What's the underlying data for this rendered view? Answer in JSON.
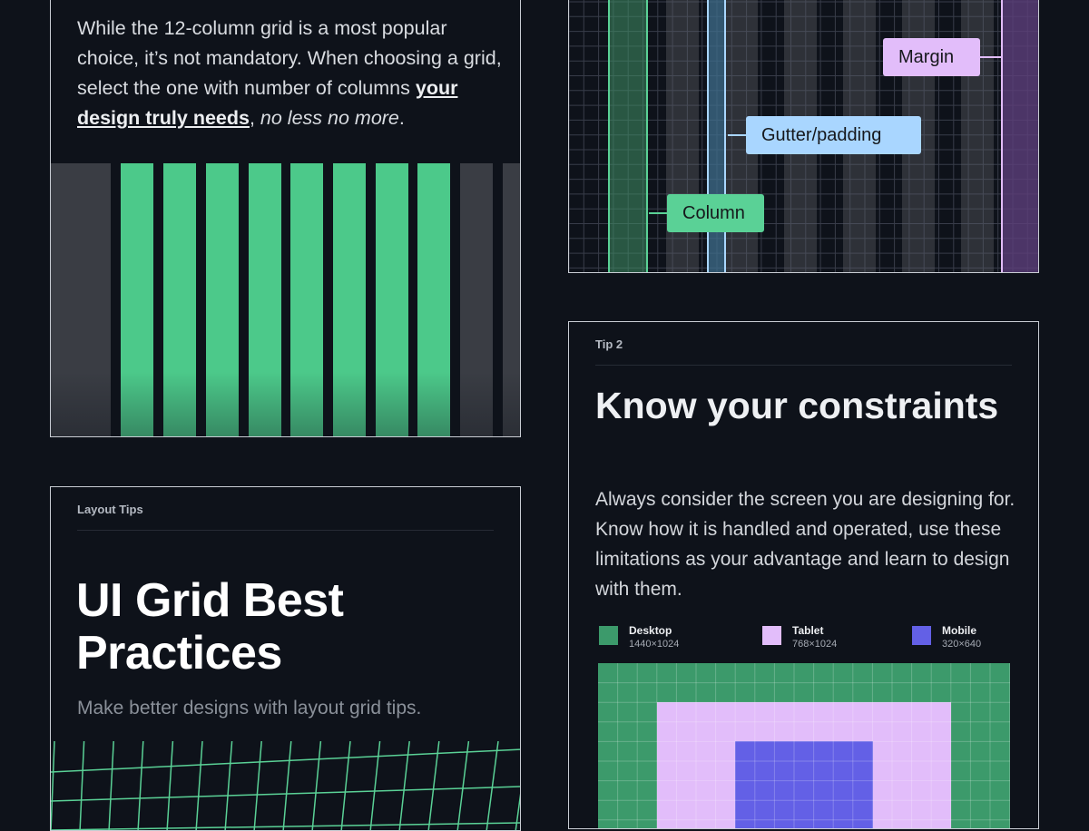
{
  "colors": {
    "background": "#0e121a",
    "column_green": "#4cc98a",
    "column_gray": "#3a3d44",
    "gutter_blue": "#a9d6ff",
    "margin_purple": "#e2bdfa",
    "desktop": "#3c9a6b",
    "tablet": "#e2bdfa",
    "mobile": "#6360e6"
  },
  "columns_card": {
    "text_part1": "While the 12-column grid is a most popular choice, it’s not mandatory. When choosing a grid, select the one with number of columns ",
    "text_strong": "your design truly needs",
    "text_comma": ", ",
    "text_em": "no less no more",
    "text_end": "."
  },
  "anatomy_card": {
    "callouts": {
      "margin": "Margin",
      "gutter": "Gutter/padding",
      "column": "Column"
    }
  },
  "title_card": {
    "eyebrow": "Layout Tips",
    "headline": "UI Grid Best Practices",
    "subline": "Make better designs with layout grid tips."
  },
  "constraints_card": {
    "eyebrow": "Tip 2",
    "headline": "Know your constraints",
    "body": "Always consider the screen you are designing for. Know how it is handled and operated, use these limitations as your advantage and learn to design with them.",
    "legend": [
      {
        "name": "Desktop",
        "size": "1440×1024",
        "icon": "desktop-swatch"
      },
      {
        "name": "Tablet",
        "size": "768×1024",
        "icon": "tablet-swatch"
      },
      {
        "name": "Mobile",
        "size": "320×640",
        "icon": "mobile-swatch"
      }
    ]
  }
}
